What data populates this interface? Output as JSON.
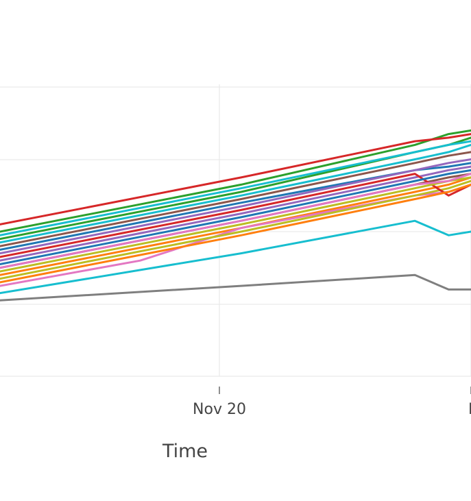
{
  "chart_data": {
    "type": "line",
    "title": "",
    "xlabel": "Time",
    "ylabel": "",
    "x_tick_labels": [
      "Nov 20",
      "N"
    ],
    "grid": true,
    "legend": "none",
    "series": [
      {
        "color": "#1f77b4",
        "x": [
          0,
          4.3,
          7.4,
          8.0,
          8.4
        ],
        "y": [
          55,
          68,
          77,
          78,
          79
        ]
      },
      {
        "color": "#ff7f0e",
        "x": [
          0,
          4.3,
          7.4,
          8.0,
          8.4
        ],
        "y": [
          48,
          61,
          71,
          73,
          75
        ]
      },
      {
        "color": "#2ca02c",
        "x": [
          0,
          4.3,
          7.4,
          8.0,
          8.4
        ],
        "y": [
          60,
          73,
          84,
          87,
          88
        ]
      },
      {
        "color": "#d62728",
        "x": [
          0,
          4.3,
          7.4,
          8.0,
          8.4
        ],
        "y": [
          62,
          75,
          85,
          86,
          87
        ]
      },
      {
        "color": "#9467bd",
        "x": [
          0,
          4.3,
          7.4,
          8.0,
          8.4
        ],
        "y": [
          52,
          65,
          75,
          77,
          78
        ]
      },
      {
        "color": "#8c564b",
        "x": [
          0,
          4.3,
          7.4,
          8.0,
          8.4
        ],
        "y": [
          50,
          63,
          73,
          75,
          76
        ]
      },
      {
        "color": "#e377c2",
        "x": [
          0,
          2.5,
          4.3,
          7.4,
          8.0,
          8.4
        ],
        "y": [
          45,
          52,
          61,
          70,
          71,
          73
        ]
      },
      {
        "color": "#7f7f7f",
        "x": [
          0,
          4.3,
          7.4,
          8.0,
          8.4
        ],
        "y": [
          41,
          45,
          48,
          44,
          44
        ]
      },
      {
        "color": "#bcbd22",
        "x": [
          0,
          4.3,
          7.4,
          8.0,
          8.4
        ],
        "y": [
          47,
          60,
          70,
          72,
          74
        ]
      },
      {
        "color": "#17becf",
        "x": [
          0,
          4.3,
          7.4,
          8.0,
          8.4
        ],
        "y": [
          57,
          70,
          80,
          82,
          84
        ]
      },
      {
        "color": "#17becf",
        "x": [
          0,
          4.3,
          7.4,
          8.0,
          8.4
        ],
        "y": [
          43,
          54,
          63,
          59,
          60
        ]
      },
      {
        "color": "#d62728",
        "x": [
          0,
          4.3,
          7.4,
          8.0,
          8.4
        ],
        "y": [
          53,
          66,
          76,
          70,
          73
        ]
      },
      {
        "color": "#2ca02c",
        "x": [
          0,
          4.3,
          7.4,
          8.0,
          8.4
        ],
        "y": [
          58,
          71,
          82,
          84,
          86
        ]
      },
      {
        "color": "#1f77b4",
        "x": [
          0,
          4.3,
          7.4,
          8.0,
          8.4
        ],
        "y": [
          51,
          64,
          74,
          76,
          77
        ]
      },
      {
        "color": "#ff7f0e",
        "x": [
          0,
          4.3,
          7.4,
          8.0,
          8.4
        ],
        "y": [
          46,
          59,
          69,
          71,
          73
        ]
      },
      {
        "color": "#9467bd",
        "x": [
          0,
          4.3,
          7.4,
          8.0,
          8.4
        ],
        "y": [
          54,
          67,
          77,
          79,
          80
        ]
      },
      {
        "color": "#bcbd22",
        "x": [
          0,
          4.3,
          7.4,
          8.0,
          8.4
        ],
        "y": [
          49,
          62,
          72,
          74,
          75
        ]
      },
      {
        "color": "#e377c2",
        "x": [
          0,
          4.3,
          7.4,
          8.0,
          8.4
        ],
        "y": [
          50,
          63,
          73,
          74,
          76
        ]
      },
      {
        "color": "#8c564b",
        "x": [
          0,
          4.3,
          7.4,
          8.0,
          8.4
        ],
        "y": [
          56,
          69,
          79,
          81,
          82
        ]
      },
      {
        "color": "#17becf",
        "x": [
          0,
          4.3,
          7.4,
          8.0,
          8.4
        ],
        "y": [
          59,
          72,
          82,
          84,
          85
        ]
      }
    ]
  }
}
